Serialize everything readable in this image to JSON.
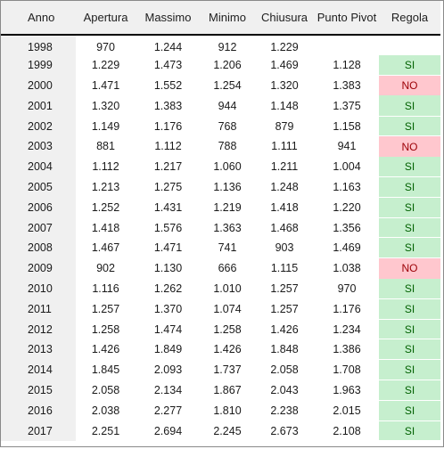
{
  "headers": [
    "Anno",
    "Apertura",
    "Massimo",
    "Minimo",
    "Chiusura",
    "Punto Pivot",
    "Regola"
  ],
  "rows": [
    {
      "anno": "1998",
      "apertura": "970",
      "massimo": "1.244",
      "minimo": "912",
      "chiusura": "1.229",
      "pivot": "",
      "regola": ""
    },
    {
      "anno": "1999",
      "apertura": "1.229",
      "massimo": "1.473",
      "minimo": "1.206",
      "chiusura": "1.469",
      "pivot": "1.128",
      "regola": "SI"
    },
    {
      "anno": "2000",
      "apertura": "1.471",
      "massimo": "1.552",
      "minimo": "1.254",
      "chiusura": "1.320",
      "pivot": "1.383",
      "regola": "NO"
    },
    {
      "anno": "2001",
      "apertura": "1.320",
      "massimo": "1.383",
      "minimo": "944",
      "chiusura": "1.148",
      "pivot": "1.375",
      "regola": "SI"
    },
    {
      "anno": "2002",
      "apertura": "1.149",
      "massimo": "1.176",
      "minimo": "768",
      "chiusura": "879",
      "pivot": "1.158",
      "regola": "SI"
    },
    {
      "anno": "2003",
      "apertura": "881",
      "massimo": "1.112",
      "minimo": "788",
      "chiusura": "1.111",
      "pivot": "941",
      "regola": "NO"
    },
    {
      "anno": "2004",
      "apertura": "1.112",
      "massimo": "1.217",
      "minimo": "1.060",
      "chiusura": "1.211",
      "pivot": "1.004",
      "regola": "SI"
    },
    {
      "anno": "2005",
      "apertura": "1.213",
      "massimo": "1.275",
      "minimo": "1.136",
      "chiusura": "1.248",
      "pivot": "1.163",
      "regola": "SI"
    },
    {
      "anno": "2006",
      "apertura": "1.252",
      "massimo": "1.431",
      "minimo": "1.219",
      "chiusura": "1.418",
      "pivot": "1.220",
      "regola": "SI"
    },
    {
      "anno": "2007",
      "apertura": "1.418",
      "massimo": "1.576",
      "minimo": "1.363",
      "chiusura": "1.468",
      "pivot": "1.356",
      "regola": "SI"
    },
    {
      "anno": "2008",
      "apertura": "1.467",
      "massimo": "1.471",
      "minimo": "741",
      "chiusura": "903",
      "pivot": "1.469",
      "regola": "SI"
    },
    {
      "anno": "2009",
      "apertura": "902",
      "massimo": "1.130",
      "minimo": "666",
      "chiusura": "1.115",
      "pivot": "1.038",
      "regola": "NO"
    },
    {
      "anno": "2010",
      "apertura": "1.116",
      "massimo": "1.262",
      "minimo": "1.010",
      "chiusura": "1.257",
      "pivot": "970",
      "regola": "SI"
    },
    {
      "anno": "2011",
      "apertura": "1.257",
      "massimo": "1.370",
      "minimo": "1.074",
      "chiusura": "1.257",
      "pivot": "1.176",
      "regola": "SI"
    },
    {
      "anno": "2012",
      "apertura": "1.258",
      "massimo": "1.474",
      "minimo": "1.258",
      "chiusura": "1.426",
      "pivot": "1.234",
      "regola": "SI"
    },
    {
      "anno": "2013",
      "apertura": "1.426",
      "massimo": "1.849",
      "minimo": "1.426",
      "chiusura": "1.848",
      "pivot": "1.386",
      "regola": "SI"
    },
    {
      "anno": "2014",
      "apertura": "1.845",
      "massimo": "2.093",
      "minimo": "1.737",
      "chiusura": "2.058",
      "pivot": "1.708",
      "regola": "SI"
    },
    {
      "anno": "2015",
      "apertura": "2.058",
      "massimo": "2.134",
      "minimo": "1.867",
      "chiusura": "2.043",
      "pivot": "1.963",
      "regola": "SI"
    },
    {
      "anno": "2016",
      "apertura": "2.038",
      "massimo": "2.277",
      "minimo": "1.810",
      "chiusura": "2.238",
      "pivot": "2.015",
      "regola": "SI"
    },
    {
      "anno": "2017",
      "apertura": "2.251",
      "massimo": "2.694",
      "minimo": "2.245",
      "chiusura": "2.673",
      "pivot": "2.108",
      "regola": "SI"
    }
  ],
  "colors": {
    "si_fill": "#c6efce",
    "si_text": "#006100",
    "no_fill": "#ffc7ce",
    "no_text": "#9c0006",
    "header_fill": "#f0f0f0"
  }
}
